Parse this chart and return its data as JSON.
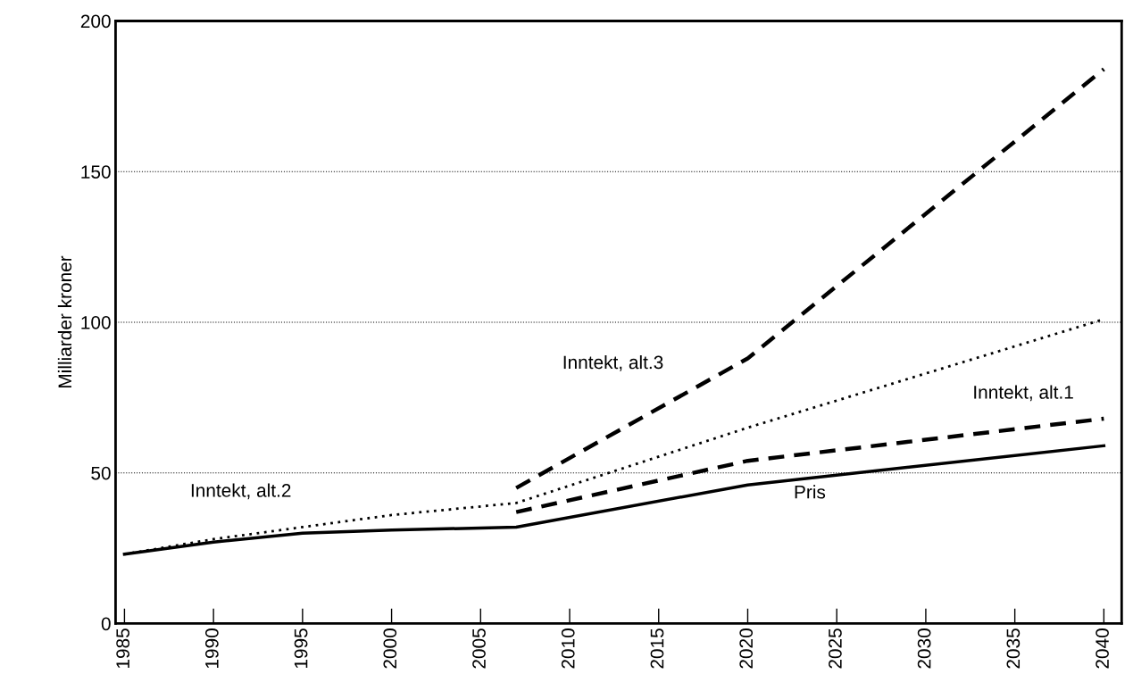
{
  "chart_data": {
    "type": "line",
    "ylabel": "Milliarder kroner",
    "xlim": [
      1984.5,
      2041
    ],
    "xticks": [
      1985,
      1990,
      1995,
      2000,
      2005,
      2010,
      2015,
      2020,
      2025,
      2030,
      2035,
      2040
    ],
    "ylim": [
      0,
      200
    ],
    "yticks": [
      0,
      50,
      100,
      150,
      200
    ],
    "grid": "y",
    "series": [
      {
        "name": "Pris",
        "color": "#000000",
        "line_style": "solid",
        "x": [
          1985,
          1990,
          1995,
          2000,
          2007,
          2020,
          2040
        ],
        "values": [
          23,
          27,
          30,
          31,
          32,
          46,
          59
        ]
      },
      {
        "name": "Inntekt, alt.1",
        "color": "#000000",
        "line_style": "dashed",
        "x": [
          2007,
          2020,
          2040
        ],
        "values": [
          37,
          54,
          68
        ]
      },
      {
        "name": "Inntekt, alt.2",
        "color": "#000000",
        "line_style": "dotted",
        "x": [
          1985,
          1990,
          1995,
          2000,
          2007,
          2020,
          2040
        ],
        "values": [
          23,
          28,
          32,
          36,
          40,
          65,
          101
        ]
      },
      {
        "name": "Inntekt, alt.3",
        "color": "#000000",
        "line_style": "dashed",
        "x": [
          2007,
          2020,
          2040
        ],
        "values": [
          45,
          88,
          184
        ]
      }
    ]
  }
}
